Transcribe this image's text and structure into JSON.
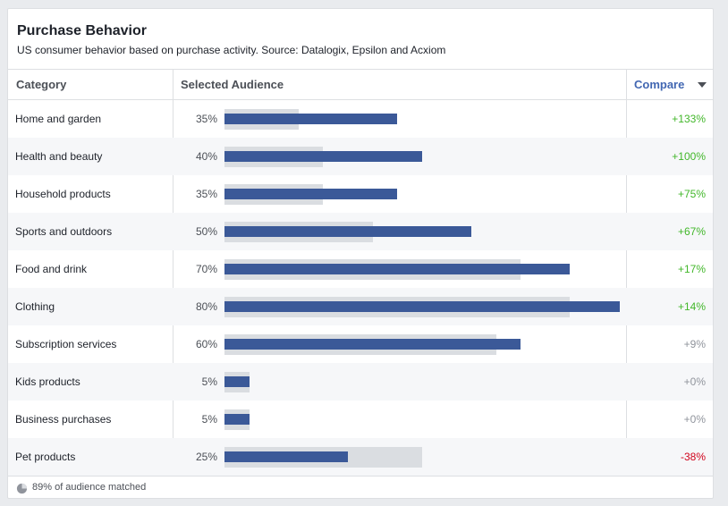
{
  "header": {
    "title": "Purchase Behavior",
    "subtitle": "US consumer behavior based on purchase activity. Source: Datalogix, Epsilon and Acxiom"
  },
  "columns": {
    "category": "Category",
    "selected": "Selected Audience",
    "compare": "Compare"
  },
  "footer": {
    "text": "89% of audience matched",
    "icon": "pie-chart-icon"
  },
  "colors": {
    "selected_bar": "#3b5998",
    "baseline_bar": "#dadde1",
    "positive": "#42b72a",
    "neutral": "#90949c",
    "negative": "#d0021b",
    "link": "#4267b2"
  },
  "chart_data": {
    "type": "bar",
    "title": "Purchase Behavior",
    "categories": [
      "Home and garden",
      "Health and beauty",
      "Household products",
      "Sports and outdoors",
      "Food and drink",
      "Clothing",
      "Subscription services",
      "Kids products",
      "Business purchases",
      "Pet products"
    ],
    "series": [
      {
        "name": "Selected Audience",
        "values": [
          35,
          40,
          35,
          50,
          70,
          80,
          60,
          5,
          5,
          25
        ]
      },
      {
        "values": [
          15,
          20,
          20,
          30,
          60,
          70,
          55,
          5,
          5,
          40
        ]
      }
    ],
    "labels": [
      "35%",
      "40%",
      "35%",
      "50%",
      "70%",
      "80%",
      "60%",
      "5%",
      "5%",
      "25%"
    ],
    "compare": [
      "+133%",
      "+100%",
      "+75%",
      "+67%",
      "+17%",
      "+14%",
      "+9%",
      "+0%",
      "+0%",
      "-38%"
    ],
    "ylim": [
      0,
      80
    ]
  }
}
